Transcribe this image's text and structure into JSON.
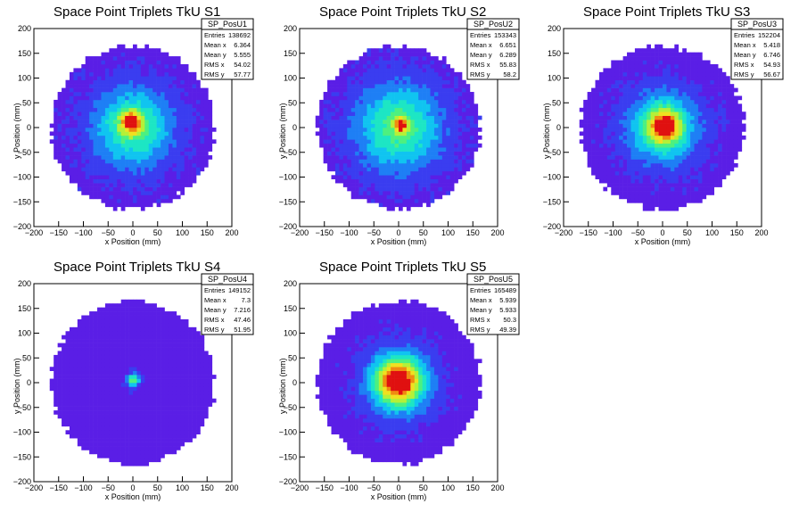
{
  "chart_data": [
    {
      "type": "heatmap",
      "title": "Space Point Triplets TkU S1",
      "xlabel": "x Position (mm)",
      "ylabel": "y Position (mm)",
      "xlim": [
        -200,
        200
      ],
      "ylim": [
        -200,
        200
      ],
      "xticks": [
        "−200",
        "−150",
        "−100",
        "−50",
        "0",
        "50",
        "100",
        "150",
        "200"
      ],
      "yticks": [
        "−200",
        "−150",
        "−100",
        "−50",
        "0",
        "50",
        "100",
        "150",
        "200"
      ],
      "stats": {
        "name": "SP_PosU1",
        "rows": [
          {
            "label": "Entries",
            "value": "138692"
          },
          {
            "label": "Mean x",
            "value": "6.364"
          },
          {
            "label": "Mean y",
            "value": "5.555"
          },
          {
            "label": "RMS x",
            "value": "54.02"
          },
          {
            "label": "RMS y",
            "value": "57.77"
          }
        ]
      },
      "distribution": {
        "radius_mm": 165,
        "core_x_mm": -3,
        "core_y_mm": 12,
        "core_sigma_mm": 15,
        "halo_sigma_mm": 55,
        "peak_fraction": 1.0
      }
    },
    {
      "type": "heatmap",
      "title": "Space Point Triplets TkU S2",
      "xlabel": "x Position (mm)",
      "ylabel": "y Position (mm)",
      "xlim": [
        -200,
        200
      ],
      "ylim": [
        -200,
        200
      ],
      "xticks": [
        "−200",
        "−150",
        "−100",
        "−50",
        "0",
        "50",
        "100",
        "150",
        "200"
      ],
      "yticks": [
        "−200",
        "−150",
        "−100",
        "−50",
        "0",
        "50",
        "100",
        "150",
        "200"
      ],
      "stats": {
        "name": "SP_PosU2",
        "rows": [
          {
            "label": "Entries",
            "value": "153343"
          },
          {
            "label": "Mean x",
            "value": "6.651"
          },
          {
            "label": "Mean y",
            "value": "6.289"
          },
          {
            "label": "RMS x",
            "value": "55.83"
          },
          {
            "label": "RMS y",
            "value": "58.2"
          }
        ]
      },
      "distribution": {
        "radius_mm": 165,
        "core_x_mm": 5,
        "core_y_mm": 5,
        "core_sigma_mm": 10,
        "halo_sigma_mm": 60,
        "peak_fraction": 0.85
      }
    },
    {
      "type": "heatmap",
      "title": "Space Point Triplets TkU S3",
      "xlabel": "x Position (mm)",
      "ylabel": "y Position (mm)",
      "xlim": [
        -200,
        200
      ],
      "ylim": [
        -200,
        200
      ],
      "xticks": [
        "−200",
        "−150",
        "−100",
        "−50",
        "0",
        "50",
        "100",
        "150",
        "200"
      ],
      "yticks": [
        "−200",
        "−150",
        "−100",
        "−50",
        "0",
        "50",
        "100",
        "150",
        "200"
      ],
      "stats": {
        "name": "SP_PosU3",
        "rows": [
          {
            "label": "Entries",
            "value": "152204"
          },
          {
            "label": "Mean x",
            "value": "5.418"
          },
          {
            "label": "Mean y",
            "value": "6.746"
          },
          {
            "label": "RMS x",
            "value": "54.93"
          },
          {
            "label": "RMS y",
            "value": "56.67"
          }
        ]
      },
      "distribution": {
        "radius_mm": 165,
        "core_x_mm": 5,
        "core_y_mm": 3,
        "core_sigma_mm": 22,
        "halo_sigma_mm": 50,
        "peak_fraction": 1.0
      }
    },
    {
      "type": "heatmap",
      "title": "Space Point Triplets TkU S4",
      "xlabel": "x Position (mm)",
      "ylabel": "y Position (mm)",
      "xlim": [
        -200,
        200
      ],
      "ylim": [
        -200,
        200
      ],
      "xticks": [
        "−200",
        "−150",
        "−100",
        "−50",
        "0",
        "50",
        "100",
        "150",
        "200"
      ],
      "yticks": [
        "−200",
        "−150",
        "−100",
        "−50",
        "0",
        "50",
        "100",
        "150",
        "200"
      ],
      "stats": {
        "name": "SP_PosU4",
        "rows": [
          {
            "label": "Entries",
            "value": "149152"
          },
          {
            "label": "Mean x",
            "value": "7.3"
          },
          {
            "label": "Mean y",
            "value": "7.216"
          },
          {
            "label": "RMS x",
            "value": "47.46"
          },
          {
            "label": "RMS y",
            "value": "51.95"
          }
        ]
      },
      "distribution": {
        "radius_mm": 165,
        "core_x_mm": 0,
        "core_y_mm": 5,
        "core_sigma_mm": 9,
        "halo_sigma_mm": 0,
        "peak_fraction": 1.0
      }
    },
    {
      "type": "heatmap",
      "title": "Space Point Triplets TkU S5",
      "xlabel": "x Position (mm)",
      "ylabel": "y Position (mm)",
      "xlim": [
        -200,
        200
      ],
      "ylim": [
        -200,
        200
      ],
      "xticks": [
        "−200",
        "−150",
        "−100",
        "−50",
        "0",
        "50",
        "100",
        "150",
        "200"
      ],
      "yticks": [
        "−200",
        "−150",
        "−100",
        "−50",
        "0",
        "50",
        "100",
        "150",
        "200"
      ],
      "stats": {
        "name": "SP_PosU5",
        "rows": [
          {
            "label": "Entries",
            "value": "165489"
          },
          {
            "label": "Mean x",
            "value": "5.939"
          },
          {
            "label": "Mean y",
            "value": "5.933"
          },
          {
            "label": "RMS x",
            "value": "50.3"
          },
          {
            "label": "RMS y",
            "value": "49.39"
          }
        ]
      },
      "distribution": {
        "radius_mm": 165,
        "core_x_mm": 0,
        "core_y_mm": 5,
        "core_sigma_mm": 30,
        "halo_sigma_mm": 45,
        "peak_fraction": 1.0
      }
    }
  ],
  "colors": {
    "background": "#ffffff",
    "palette": [
      "#5a1ee6",
      "#3a3df0",
      "#1e7ff5",
      "#10c4f0",
      "#1de6c4",
      "#4df080",
      "#b4f038",
      "#f0e020",
      "#f08a10",
      "#e01010"
    ]
  }
}
